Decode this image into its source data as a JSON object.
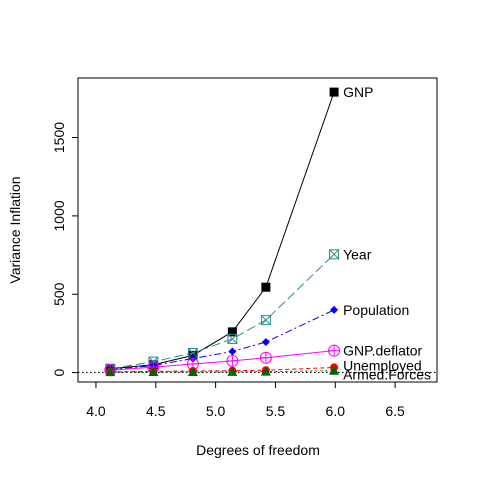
{
  "chart_data": {
    "type": "line",
    "title": "",
    "xlabel": "Degrees of freedom",
    "ylabel": "Variance Inflation",
    "xlim": [
      3.85,
      6.85
    ],
    "ylim": [
      -60,
      1880
    ],
    "xticks": [
      4.0,
      4.5,
      5.0,
      5.5,
      6.0,
      6.5
    ],
    "xtick_labels": [
      "4.0",
      "4.5",
      "5.0",
      "5.5",
      "6.0",
      "6.5"
    ],
    "yticks": [
      0,
      500,
      1000,
      1500
    ],
    "ytick_labels": [
      "0",
      "500",
      "1000",
      "1500"
    ],
    "grid": false,
    "legend": "none",
    "x": [
      4.12,
      4.48,
      4.81,
      5.14,
      5.42,
      5.99
    ],
    "reference_line": {
      "y": 1,
      "style": "dotted",
      "color": "#000000"
    },
    "series": [
      {
        "name": "GNP",
        "color": "#000000",
        "marker": "filled-square",
        "dash": "",
        "values": [
          25,
          50,
          110,
          260,
          545,
          1790
        ]
      },
      {
        "name": "Year",
        "color": "#2a8c8c",
        "marker": "boxed-x",
        "dash": "9,4",
        "values": [
          25,
          70,
          125,
          215,
          335,
          755
        ]
      },
      {
        "name": "Population",
        "color": "#0000ff",
        "marker": "filled-diamond",
        "dash": "7,3,2,3",
        "values": [
          20,
          45,
          90,
          135,
          195,
          400
        ]
      },
      {
        "name": "GNP.deflator",
        "color": "#ff00ff",
        "marker": "circle-plus",
        "dash": "",
        "values": [
          15,
          35,
          55,
          75,
          95,
          140
        ]
      },
      {
        "name": "Unemployed",
        "color": "#ff0000",
        "marker": "filled-circle",
        "dash": "4,3",
        "values": [
          5,
          8,
          10,
          12,
          15,
          33
        ]
      },
      {
        "name": "Armed.Forces",
        "color": "#006400",
        "marker": "filled-triangle",
        "dash": "2,3",
        "values": [
          3,
          4,
          4,
          5,
          6,
          12
        ]
      }
    ]
  }
}
